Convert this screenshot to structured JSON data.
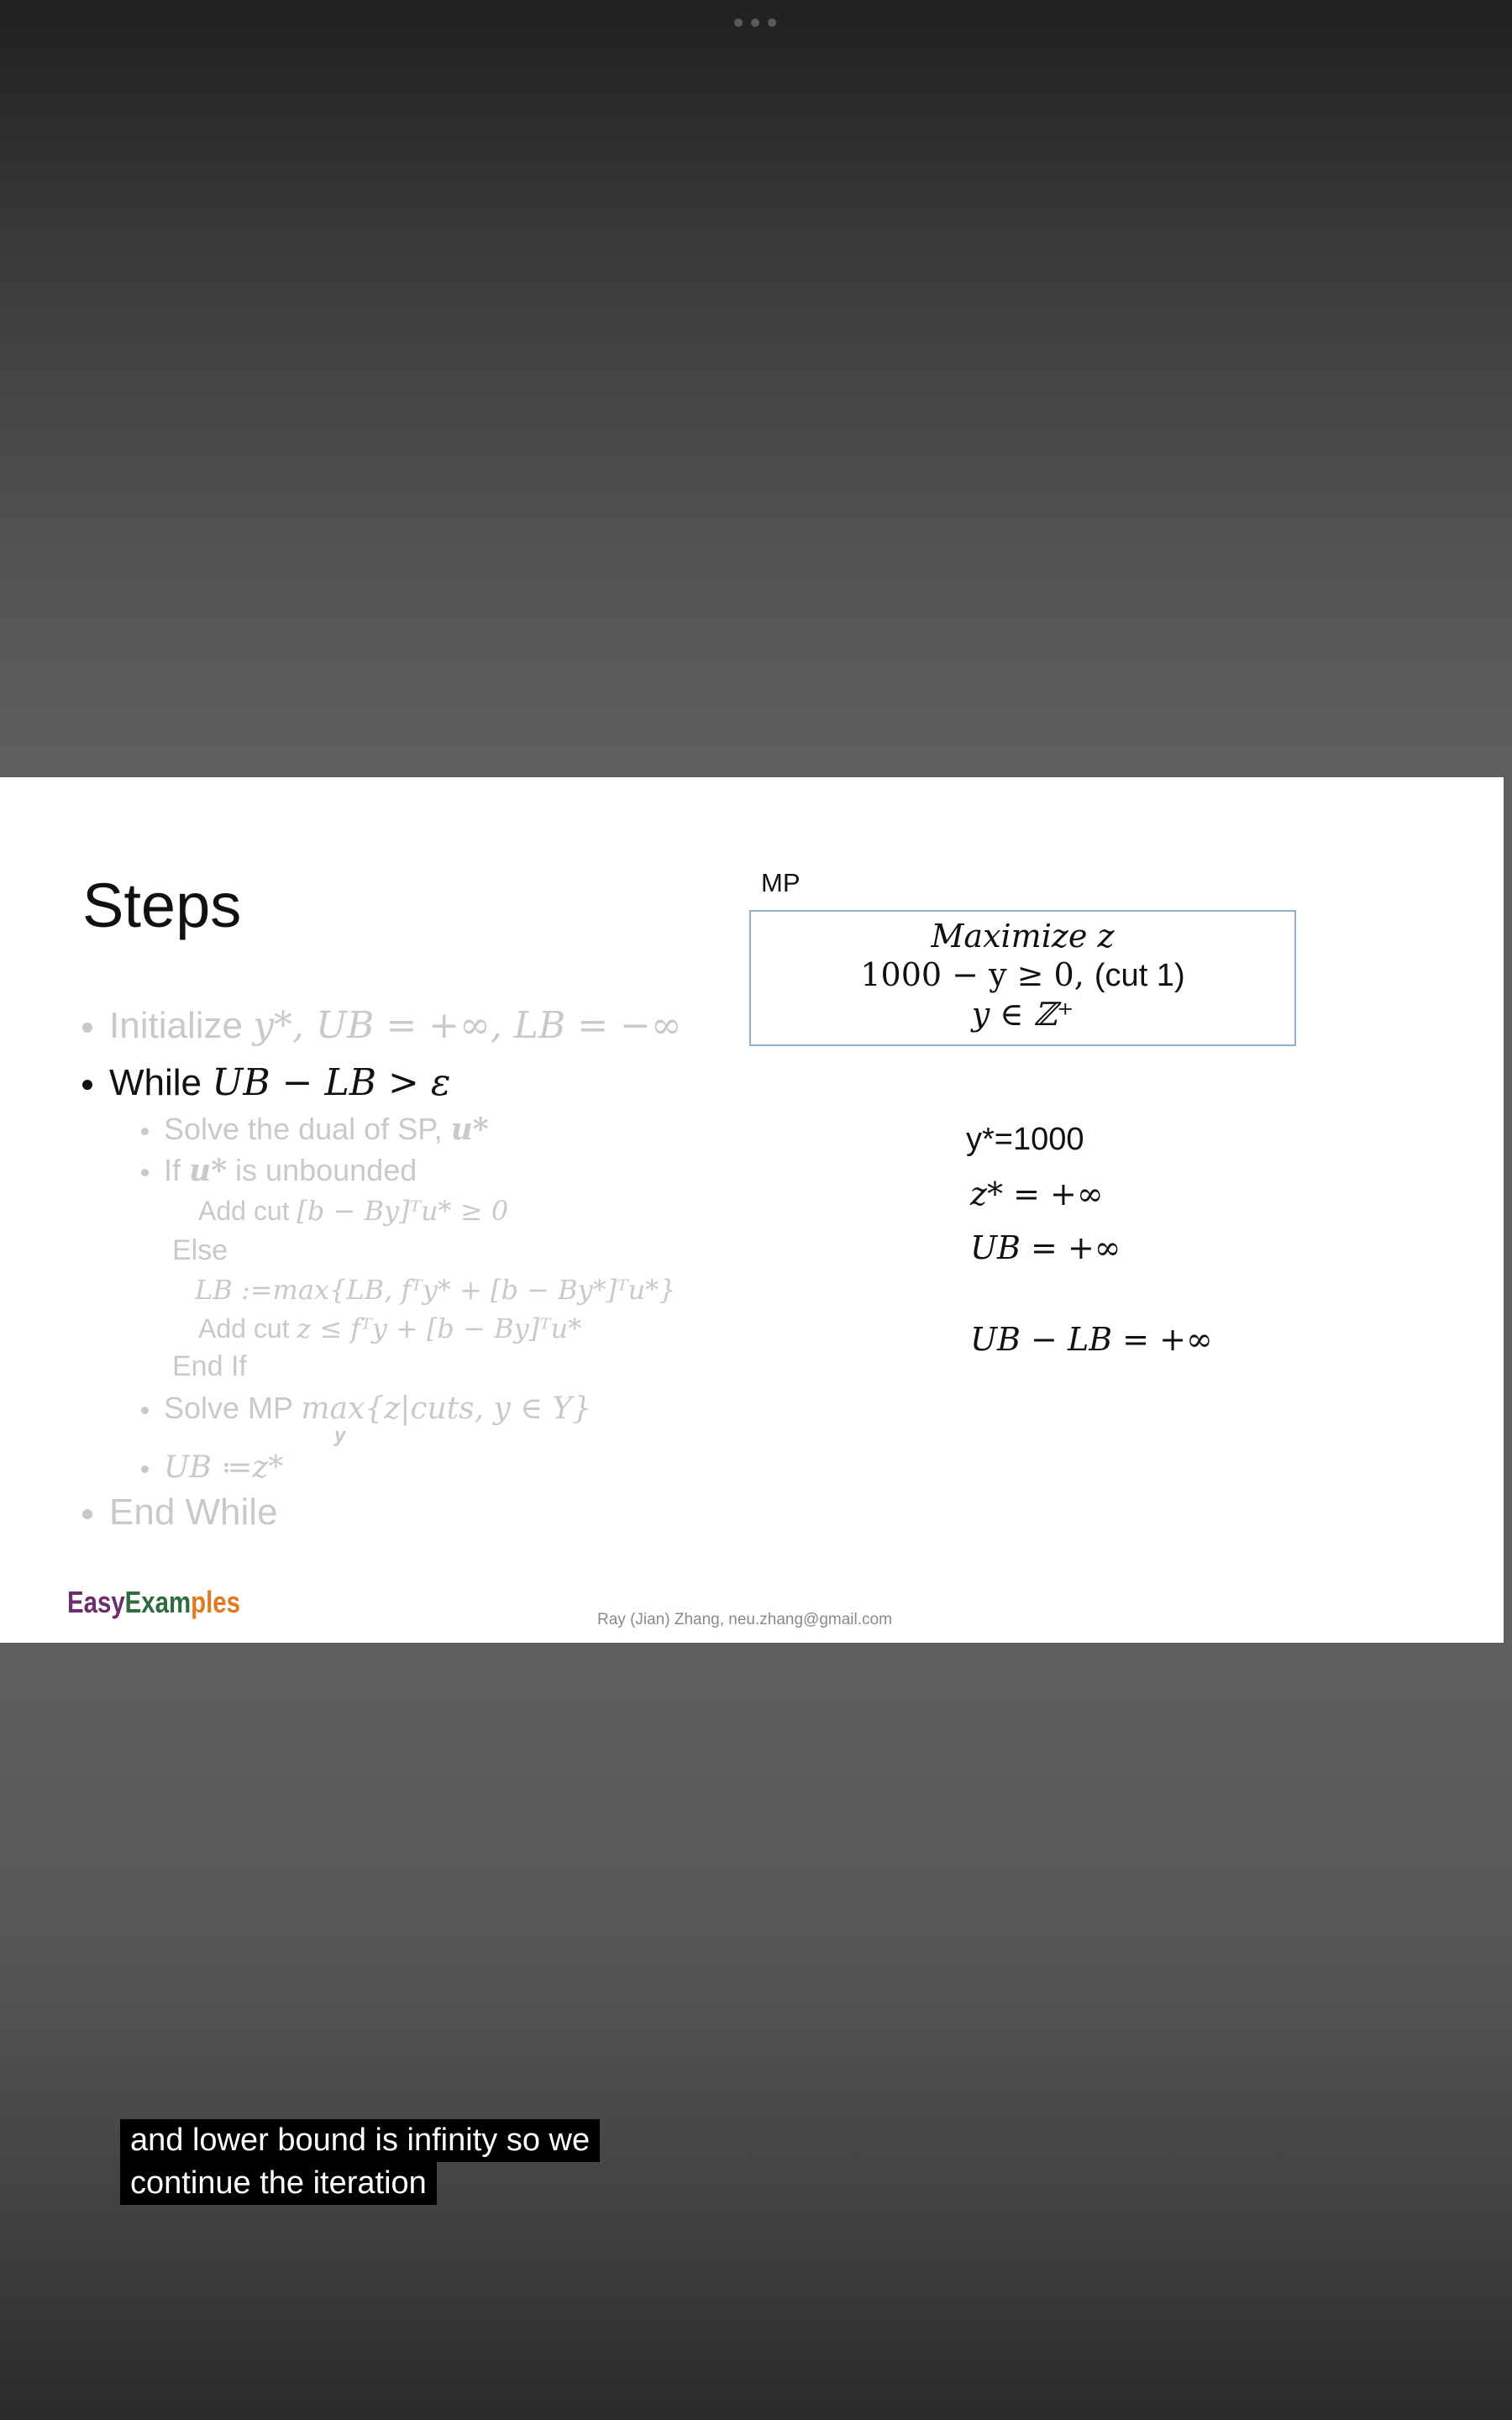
{
  "slide": {
    "title": "Steps",
    "bullets": {
      "initialize_label": "Initialize",
      "initialize_math": "y*, UB = +∞, LB = −∞",
      "while_label": "While",
      "while_math": "UB − LB > ε",
      "solve_dual_label": "Solve the dual of SP,",
      "solve_dual_math": "u*",
      "if_label": "If",
      "if_math": "u*",
      "if_suffix": "is unbounded",
      "add_cut_1_label": "Add cut",
      "add_cut_1_math": "[b − By]ᵀu* ≥ 0",
      "else_label": "Else",
      "lb_update_math": "LB :=max{LB, fᵀy* + [b − By*]ᵀu*}",
      "add_cut_2_label": "Add cut",
      "add_cut_2_math": "z ≤ fᵀy + [b − By]ᵀu*",
      "end_if_label": "End If",
      "solve_mp_label": "Solve MP",
      "solve_mp_math": "max{z|cuts, y ∈ Y}",
      "solve_mp_sub": "y",
      "ub_update_math": "UB ≔z*",
      "end_while_label": "End While"
    },
    "mp": {
      "label": "MP",
      "objective": "Maximize z",
      "cut_math": "1000 − y ≥ 0,",
      "cut_label": "(cut 1)",
      "domain": "y ∈ ℤ⁺"
    },
    "results": {
      "y_star": "y*=1000",
      "z_star": "z* = +∞",
      "ub": "UB = +∞",
      "gap": "UB − LB = +∞"
    },
    "logo_text": "EasyExamples",
    "logo_colors": [
      "#6b2d6b",
      "#2f6b3f",
      "#e07a1f"
    ],
    "footer": "Ray (Jian) Zhang, neu.zhang@gmail.com"
  },
  "caption": {
    "line1": "and lower bound is infinity so we",
    "line2": "continue the iteration"
  }
}
